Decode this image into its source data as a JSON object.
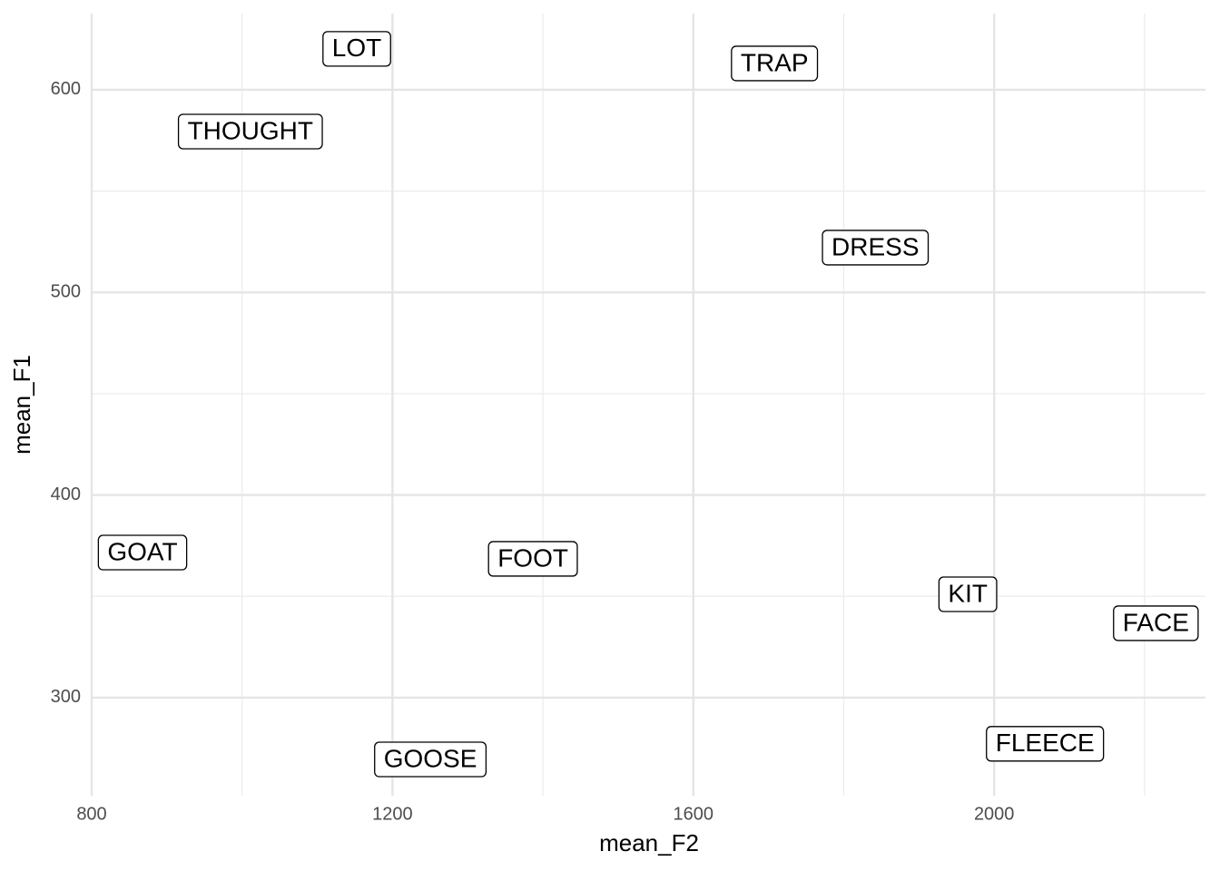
{
  "chart_data": {
    "type": "label-scatter",
    "x_label": "mean_F2",
    "y_label": "mean_F1",
    "labels": [
      "LOT",
      "TRAP",
      "THOUGHT",
      "DRESS",
      "GOAT",
      "FOOT",
      "KIT",
      "FACE",
      "FLEECE",
      "GOOSE"
    ],
    "x": [
      1152.5,
      1707.9,
      1011,
      1842,
      867.6,
      1386.7,
      1965,
      2215,
      2067.6,
      1250.3
    ],
    "values": [
      620.2,
      613,
      579.4,
      522.1,
      371.6,
      368.5,
      351,
      336.7,
      277.2,
      269.5
    ],
    "xlim": [
      800,
      2281
    ],
    "ylim": [
      251.6,
      637.6
    ],
    "xticks": [
      800,
      1200,
      1600,
      2000
    ],
    "yticks": [
      300,
      400,
      500,
      600
    ],
    "x_minor_ticks": [
      1000,
      1400,
      1800,
      2200
    ],
    "y_minor_ticks": [
      350,
      450,
      550
    ],
    "grid": true
  }
}
